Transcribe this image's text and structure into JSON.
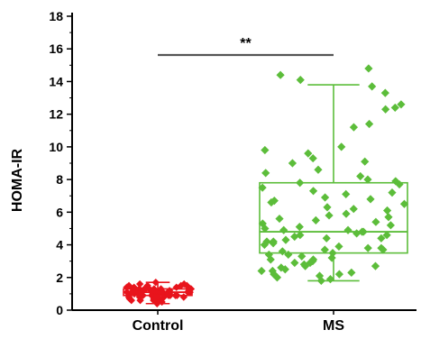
{
  "chart_data": {
    "type": "scatter",
    "subtype": "box-and-scatter",
    "title": "",
    "xlabel": "",
    "ylabel": "HOMA-IR",
    "categories": [
      "Control",
      "MS"
    ],
    "ylim": [
      0,
      18
    ],
    "yticks": [
      0,
      2,
      4,
      6,
      8,
      10,
      12,
      14,
      16,
      18
    ],
    "legend": "none",
    "grid": false,
    "colors": {
      "Control": "#e8141c",
      "MS": "#5cbd3a",
      "axis": "#000000",
      "significance_bar": "#555555"
    },
    "significance": {
      "between": [
        "Control",
        "MS"
      ],
      "label": "**"
    },
    "box_stats": [
      {
        "group": "Control",
        "min": 0.4,
        "q1": 0.9,
        "median": 1.1,
        "q3": 1.3,
        "max": 1.7
      },
      {
        "group": "MS",
        "min": 1.8,
        "q1": 3.5,
        "median": 4.8,
        "q3": 7.8,
        "max": 13.8
      }
    ],
    "series": [
      {
        "name": "Control",
        "values": [
          0.4,
          0.5,
          0.6,
          0.6,
          0.7,
          0.7,
          0.8,
          0.8,
          0.8,
          0.9,
          0.9,
          0.9,
          0.9,
          1.0,
          1.0,
          1.0,
          1.0,
          1.0,
          1.0,
          1.1,
          1.1,
          1.1,
          1.1,
          1.1,
          1.1,
          1.1,
          1.2,
          1.2,
          1.2,
          1.2,
          1.2,
          1.2,
          1.3,
          1.3,
          1.3,
          1.3,
          1.3,
          1.4,
          1.4,
          1.4,
          1.4,
          1.5,
          1.5,
          1.5,
          1.6,
          1.6,
          1.7,
          0.8,
          1.0,
          1.2,
          0.9,
          1.1,
          1.3,
          1.0,
          1.2,
          0.7,
          1.4,
          1.1,
          0.9,
          1.0,
          1.2,
          1.3,
          1.1,
          0.8,
          1.0,
          1.5,
          1.2,
          0.6,
          1.1,
          1.0
        ]
      },
      {
        "name": "MS",
        "values": [
          14.8,
          14.4,
          14.1,
          13.7,
          13.3,
          12.6,
          12.4,
          12.3,
          11.4,
          11.2,
          10.0,
          9.8,
          9.6,
          9.3,
          9.0,
          8.6,
          8.2,
          8.0,
          7.8,
          7.7,
          7.5,
          7.3,
          7.1,
          6.9,
          6.7,
          6.5,
          6.3,
          6.1,
          5.9,
          5.8,
          5.6,
          5.4,
          5.2,
          5.1,
          5.0,
          4.9,
          4.8,
          4.8,
          4.7,
          4.6,
          4.5,
          4.4,
          4.3,
          4.2,
          4.1,
          4.0,
          3.9,
          3.8,
          3.7,
          3.6,
          3.5,
          3.4,
          3.3,
          3.2,
          3.1,
          3.0,
          2.9,
          2.8,
          2.7,
          2.6,
          2.5,
          2.4,
          2.3,
          2.2,
          2.1,
          2.0,
          1.9,
          1.8,
          5.3,
          6.8,
          4.4,
          3.8,
          2.9,
          7.9,
          9.1,
          6.2,
          4.6,
          3.1,
          2.4,
          5.7,
          4.2,
          6.6,
          3.4,
          2.7,
          8.4,
          4.9,
          3.7,
          5.5,
          2.2,
          7.2
        ]
      }
    ]
  }
}
